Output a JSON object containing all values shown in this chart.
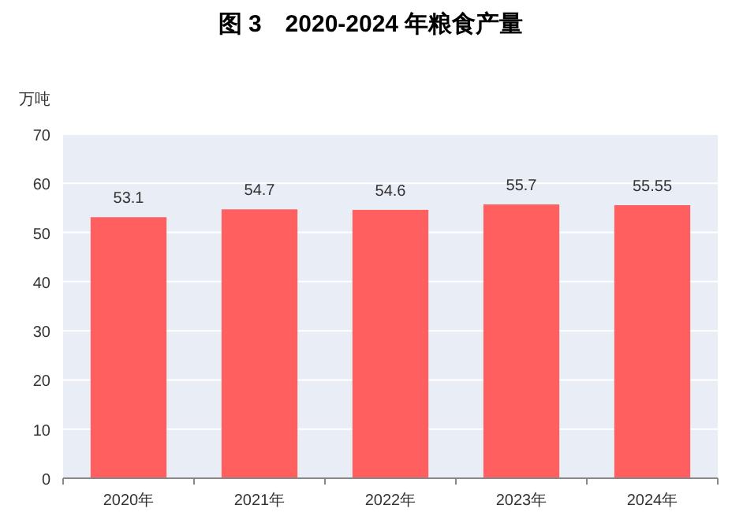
{
  "chart_data": {
    "type": "bar",
    "title": "图 3　2020-2024 年粮食产量",
    "ylabel": "万吨",
    "categories": [
      "2020年",
      "2021年",
      "2022年",
      "2023年",
      "2024年"
    ],
    "values": [
      53.1,
      54.7,
      54.6,
      55.7,
      55.55
    ],
    "color": "#ff5f5f",
    "ylim": [
      0,
      70
    ],
    "yticks": [
      0,
      10,
      20,
      30,
      40,
      50,
      60,
      70
    ],
    "grid": "y",
    "data_labels": true
  }
}
